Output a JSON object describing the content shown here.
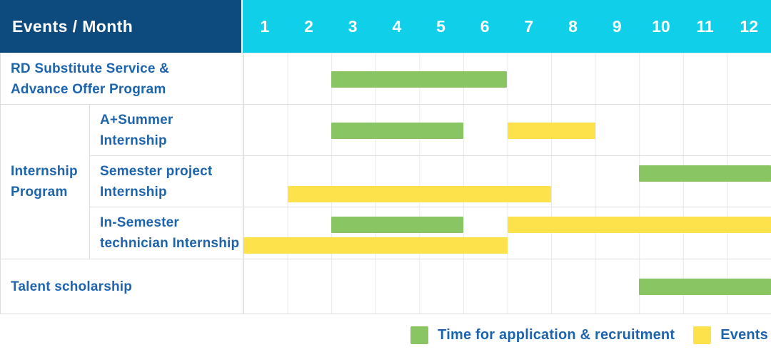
{
  "header": {
    "title": "Events / Month"
  },
  "colors": {
    "header_navy": "#0d4a7d",
    "header_cyan": "#0fcfe9",
    "bar_green": "#8ac564",
    "bar_yellow": "#fde24b",
    "label_blue": "#1d64ad",
    "grid_gray": "#dcdee0"
  },
  "chart_data": {
    "type": "table",
    "variant": "gantt-schedule",
    "title": "Events / Month",
    "xlabel": "Month",
    "x": [
      1,
      2,
      3,
      4,
      5,
      6,
      7,
      8,
      9,
      10,
      11,
      12
    ],
    "x_range": [
      1,
      12
    ],
    "grid": true,
    "legend_position": "bottom-right",
    "legend": [
      {
        "name": "Time for application & recruitment",
        "color": "#8ac564",
        "key": "green"
      },
      {
        "name": "Events",
        "color": "#fde24b",
        "key": "yellow"
      }
    ],
    "rows": [
      {
        "group": "",
        "label_lines": [
          "RD Substitute Service &",
          "Advance Offer Program"
        ],
        "bars": [
          {
            "series": "Time for application & recruitment",
            "start_month": 3,
            "end_month": 6,
            "line": "center"
          }
        ]
      },
      {
        "group": "Internship Program",
        "label_lines": [
          "A+Summer",
          "Internship"
        ],
        "bars": [
          {
            "series": "Time for application & recruitment",
            "start_month": 3,
            "end_month": 5,
            "line": "center"
          },
          {
            "series": "Events",
            "start_month": 7,
            "end_month": 8,
            "line": "center"
          }
        ]
      },
      {
        "group": "Internship Program",
        "label_lines": [
          "Semester project",
          "Internship"
        ],
        "bars": [
          {
            "series": "Time for application & recruitment",
            "start_month": 10,
            "end_month": 12,
            "line": "top"
          },
          {
            "series": "Events",
            "start_month": 2,
            "end_month": 7,
            "line": "bottom"
          }
        ]
      },
      {
        "group": "Internship Program",
        "label_lines": [
          "In-Semester",
          "technician Internship"
        ],
        "bars": [
          {
            "series": "Time for application & recruitment",
            "start_month": 3,
            "end_month": 5,
            "line": "top"
          },
          {
            "series": "Events",
            "start_month": 7,
            "end_month": 12,
            "line": "top"
          },
          {
            "series": "Events",
            "start_month": 1,
            "end_month": 6,
            "line": "bottom"
          }
        ]
      },
      {
        "group": "",
        "label_lines": [
          "Talent scholarship"
        ],
        "bars": [
          {
            "series": "Time for application & recruitment",
            "start_month": 10,
            "end_month": 12,
            "line": "center"
          }
        ]
      }
    ]
  }
}
